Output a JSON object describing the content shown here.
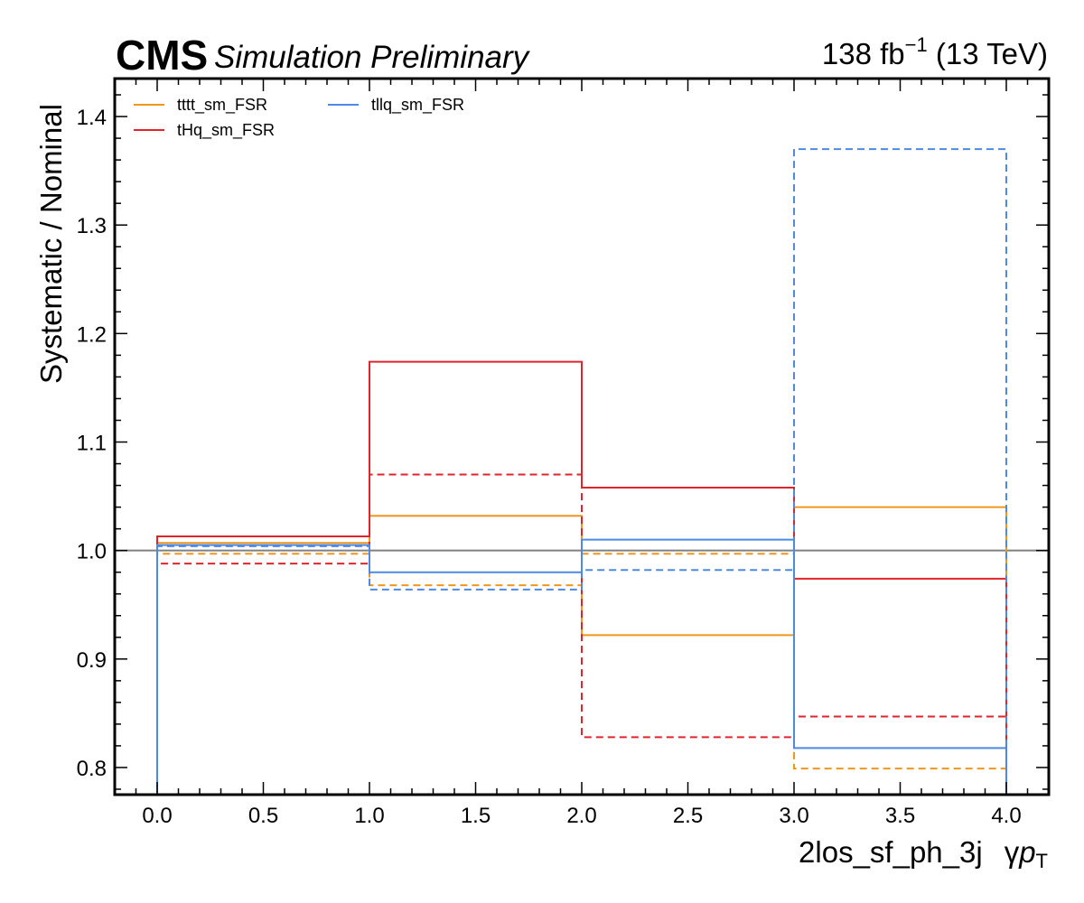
{
  "header": {
    "experiment": "CMS",
    "status": "Simulation Preliminary",
    "lumi_value": "138 fb",
    "lumi_exp": "−1",
    "energy": "(13 TeV)"
  },
  "colors": {
    "tttt": "#f0961e",
    "tHq": "#e0242b",
    "tllq": "#4d8ae6",
    "nominal": "#808080"
  },
  "chart_data": {
    "type": "step",
    "xlabel_main": "2los_sf_ph_3j",
    "xlabel_var_gamma": "γ",
    "xlabel_var_p": "p",
    "xlabel_var_sub": "T",
    "ylabel": "Systematic / Nominal",
    "xlim": [
      -0.2,
      4.2
    ],
    "ylim": [
      0.775,
      1.435
    ],
    "x_ticks": [
      0.0,
      0.5,
      1.0,
      1.5,
      2.0,
      2.5,
      3.0,
      3.5,
      4.0
    ],
    "x_tick_labels": [
      "0.0",
      "0.5",
      "1.0",
      "1.5",
      "2.0",
      "2.5",
      "3.0",
      "3.5",
      "4.0"
    ],
    "y_ticks": [
      0.8,
      0.9,
      1.0,
      1.1,
      1.2,
      1.3,
      1.4
    ],
    "y_tick_labels": [
      "0.8",
      "0.9",
      "1.0",
      "1.1",
      "1.2",
      "1.3",
      "1.4"
    ],
    "bin_edges": [
      0,
      1,
      2,
      3,
      4
    ],
    "nominal": 1.0,
    "legend_position": "top-left",
    "series": [
      {
        "name": "tttt_sm_FSR",
        "key": "tttt",
        "style": "solid",
        "values": [
          1.007,
          1.032,
          0.922,
          1.04
        ]
      },
      {
        "name": "tttt_sm_FSR (dashed)",
        "key": "tttt",
        "style": "dashed",
        "values": [
          0.997,
          0.968,
          0.997,
          0.799
        ]
      },
      {
        "name": "tHq_sm_FSR",
        "key": "tHq",
        "style": "solid",
        "values": [
          1.013,
          1.174,
          1.058,
          0.974
        ]
      },
      {
        "name": "tHq_sm_FSR (dashed)",
        "key": "tHq",
        "style": "dashed",
        "values": [
          0.988,
          1.07,
          0.828,
          0.847
        ]
      },
      {
        "name": "tllq_sm_FSR",
        "key": "tllq",
        "style": "solid",
        "values": [
          1.005,
          0.98,
          1.01,
          0.818
        ]
      },
      {
        "name": "tllq_sm_FSR (dashed)",
        "key": "tllq",
        "style": "dashed",
        "values": [
          1.004,
          0.964,
          0.982,
          1.37
        ]
      }
    ],
    "legend": [
      {
        "label": "tttt_sm_FSR",
        "key": "tttt"
      },
      {
        "label": "tHq_sm_FSR",
        "key": "tHq"
      },
      {
        "label": "tllq_sm_FSR",
        "key": "tllq"
      }
    ]
  }
}
